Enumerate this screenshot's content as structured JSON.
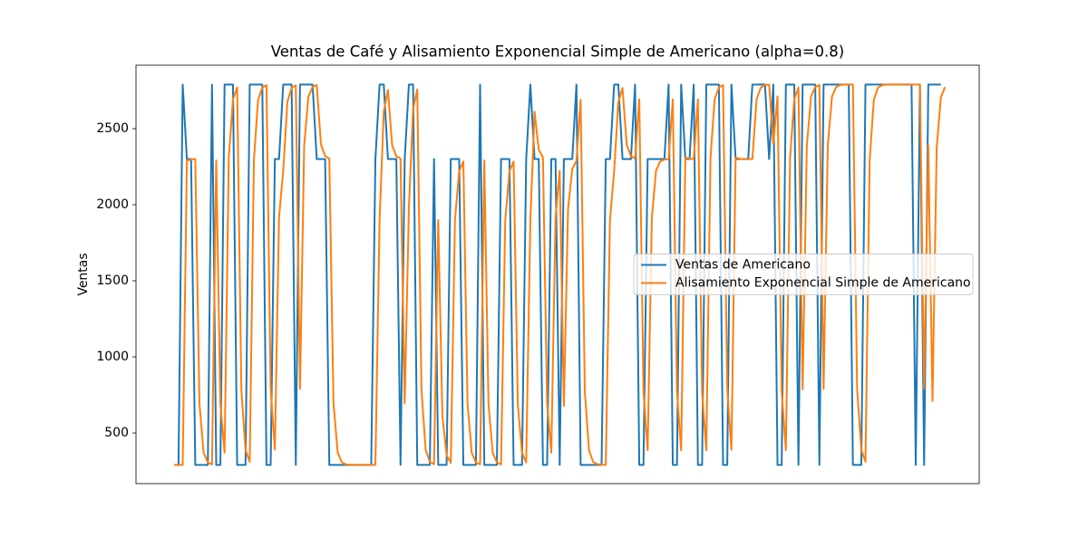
{
  "chart_data": {
    "type": "line",
    "title": "Ventas de Café y Alisamiento Exponencial Simple de Americano (alpha=0.8)",
    "y_label": "Ventas",
    "ylim": [
      167,
      2917
    ],
    "yticks": [
      500,
      1000,
      1500,
      2000,
      2500
    ],
    "legend": "center right",
    "series": [
      {
        "name": "Ventas de Americano",
        "color": "#1f77b4",
        "values": [
          290,
          290,
          2790,
          2300,
          2300,
          290,
          290,
          290,
          290,
          2790,
          290,
          290,
          2790,
          2790,
          2790,
          290,
          290,
          290,
          2790,
          2790,
          2790,
          2790,
          290,
          290,
          2300,
          2300,
          2790,
          2790,
          2790,
          290,
          2790,
          2790,
          2790,
          2790,
          2300,
          2300,
          2300,
          290,
          290,
          290,
          290,
          290,
          290,
          290,
          290,
          290,
          290,
          290,
          2300,
          2790,
          2790,
          2300,
          2300,
          2300,
          290,
          2300,
          2790,
          2790,
          290,
          290,
          290,
          290,
          2300,
          290,
          290,
          290,
          2300,
          2300,
          2300,
          290,
          290,
          290,
          290,
          2790,
          290,
          290,
          290,
          290,
          2300,
          2300,
          2300,
          290,
          290,
          290,
          2300,
          2790,
          2300,
          2300,
          290,
          290,
          2300,
          2300,
          290,
          2300,
          2300,
          2300,
          2790,
          290,
          290,
          290,
          290,
          290,
          290,
          2300,
          2300,
          2790,
          2790,
          2300,
          2300,
          2300,
          2790,
          290,
          290,
          2300,
          2300,
          2300,
          2300,
          2300,
          2790,
          290,
          290,
          2790,
          2300,
          2300,
          2790,
          290,
          290,
          2790,
          2790,
          2790,
          2790,
          290,
          290,
          2790,
          2300,
          2300,
          2300,
          2300,
          2790,
          2790,
          2790,
          2790,
          2300,
          2790,
          290,
          290,
          2790,
          2790,
          2790,
          290,
          2790,
          2790,
          2790,
          2790,
          290,
          2790,
          2790,
          2790,
          2790,
          2790,
          2790,
          2790,
          290,
          290,
          290,
          2790,
          2790,
          2790,
          2790,
          2790,
          2790,
          2790,
          2790,
          2790,
          2790,
          2790,
          2790,
          290,
          2790,
          290,
          2790,
          2790,
          2790,
          2790
        ]
      },
      {
        "name": "Alisamiento Exponencial Simple de Americano",
        "color": "#ff7f0e",
        "values": [
          290,
          290,
          290,
          2290,
          2298,
          2300,
          692,
          370,
          306,
          293,
          2291,
          690,
          370,
          2306,
          2693,
          2771,
          786,
          389,
          310,
          2294,
          2691,
          2770,
          2786,
          789,
          390,
          1918,
          2224,
          2677,
          2767,
          2785,
          789,
          2390,
          2710,
          2774,
          2787,
          2397,
          2319,
          2304,
          693,
          371,
          306,
          293,
          291,
          290,
          290,
          290,
          290,
          290,
          290,
          1898,
          2612,
          2754,
          2391,
          2318,
          2304,
          693,
          1979,
          2628,
          2758,
          784,
          389,
          310,
          294,
          1899,
          612,
          354,
          303,
          1901,
          2220,
          2284,
          689,
          370,
          306,
          293,
          2291,
          690,
          370,
          306,
          293,
          1899,
          2220,
          2284,
          689,
          370,
          306,
          1901,
          2612,
          2362,
          2312,
          694,
          371,
          1914,
          2223,
          677,
          1975,
          2235,
          2287,
          2689,
          770,
          386,
          309,
          294,
          291,
          290,
          1898,
          2220,
          2676,
          2767,
          2393,
          2319,
          2304,
          2693,
          771,
          386,
          1917,
          2223,
          2285,
          2297,
          2299,
          2692,
          770,
          386,
          2309,
          2302,
          2300,
          2692,
          770,
          386,
          2309,
          2694,
          2771,
          2786,
          789,
          390,
          2310,
          2302,
          2300,
          2300,
          2300,
          2692,
          2770,
          2786,
          2789,
          2398,
          2712,
          774,
          387,
          2309,
          2694,
          2771,
          786,
          2389,
          2710,
          2774,
          2787,
          789,
          2390,
          2710,
          2774,
          2787,
          2789,
          2790,
          2790,
          790,
          390,
          310,
          2294,
          2691,
          2770,
          2786,
          2789,
          2790,
          2790,
          2790,
          2790,
          2790,
          2790,
          2790,
          2790,
          790,
          2390,
          710,
          2374,
          2707,
          2773
        ]
      }
    ]
  }
}
